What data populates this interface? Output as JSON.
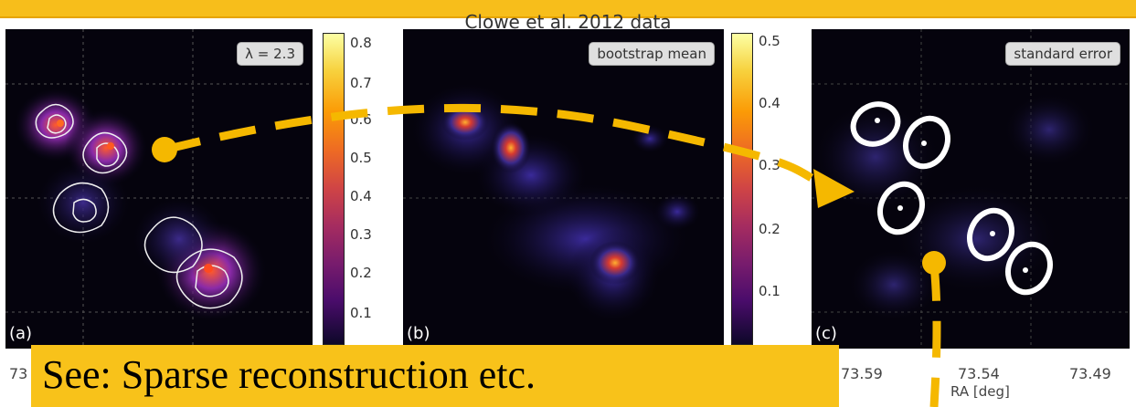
{
  "figure": {
    "title": "Clowe et al. 2012 data",
    "panels": [
      {
        "letter": "(a)",
        "label": "λ = 2.3"
      },
      {
        "letter": "(b)",
        "label": "bootstrap mean"
      },
      {
        "letter": "(c)",
        "label": "standard error"
      }
    ],
    "colorbar_a": {
      "ticks": [
        "0.8",
        "0.7",
        "0.6",
        "0.5",
        "0.4",
        "0.3",
        "0.2",
        "0.1"
      ]
    },
    "colorbar_b": {
      "ticks": [
        "0.5",
        "0.4",
        "0.3",
        "0.2",
        "0.1"
      ]
    },
    "x_axis": {
      "ticks_left": [
        "73"
      ],
      "ticks_right": [
        "73.59",
        "73.54",
        "73.49"
      ],
      "label": "RA [deg]"
    },
    "caption": "See: Sparse reconstruction etc.",
    "colors": {
      "accent": "#f8c21a",
      "arrow": "#f5b800",
      "background": "#05030d"
    }
  }
}
